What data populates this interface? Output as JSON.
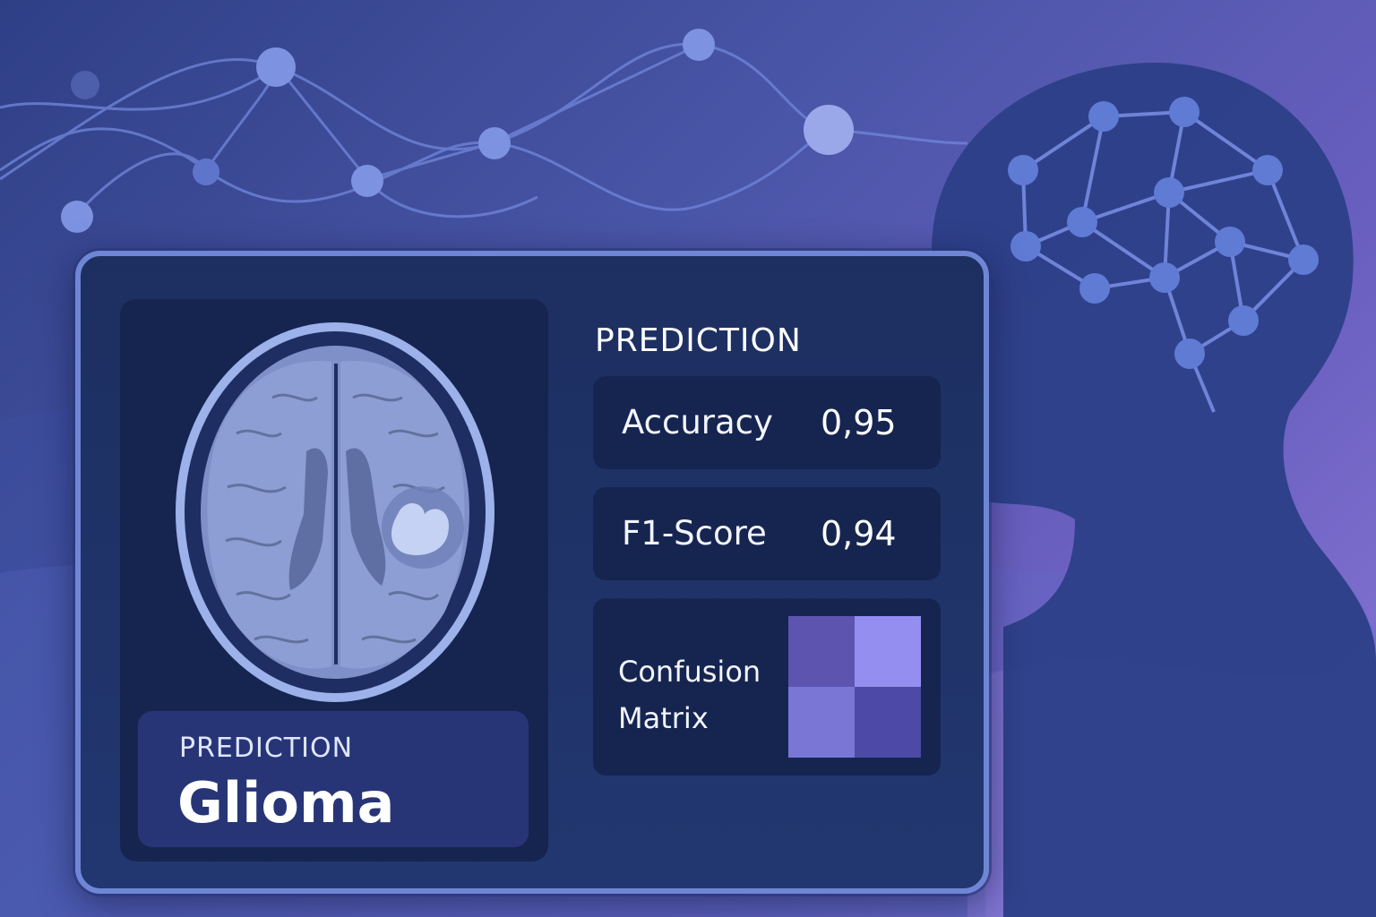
{
  "panel": {
    "result": {
      "label": "PREDICTION",
      "value": "Glioma"
    },
    "section_title": "PREDICTION",
    "metrics": [
      {
        "name": "Accuracy",
        "value": "0,95"
      },
      {
        "name": "F1-Score",
        "value": "0,94"
      }
    ],
    "confusion_matrix": {
      "label_line1": "Confusion",
      "label_line2": "Matrix",
      "cell_colors": [
        "#5d54b0",
        "#938ef0",
        "#7a76d6",
        "#4c4aa6"
      ]
    }
  },
  "colors": {
    "background_start": "#2f3f86",
    "background_end": "#8a79d6",
    "panel_border": "#6f86d6",
    "node": "#6f84d8"
  }
}
